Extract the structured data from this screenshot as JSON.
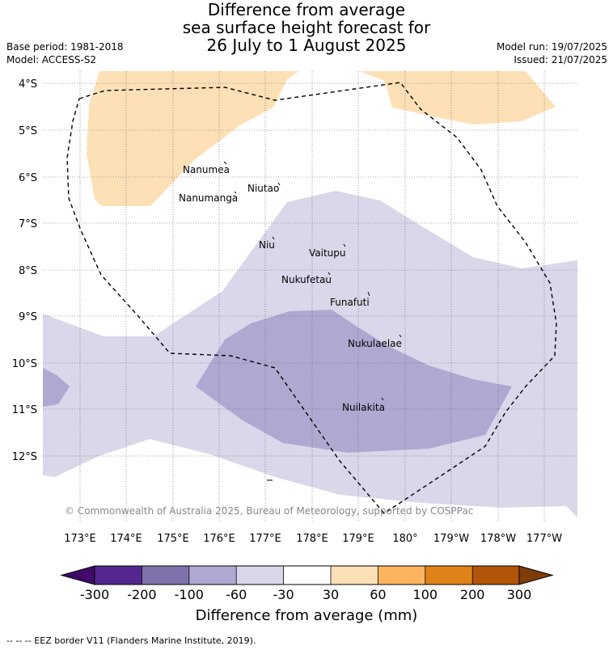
{
  "header": {
    "title_line1": "Difference from average",
    "title_line2": "sea surface height forecast for",
    "title_line3": "26 July to 1 August 2025",
    "base_period": "Base period: 1981-2018",
    "model": "Model: ACCESS-S2",
    "model_run": "Model run: 19/07/2025",
    "issued": "Issued: 21/07/2025"
  },
  "map": {
    "lat_labels": [
      "4°S",
      "5°S",
      "6°S",
      "7°S",
      "8°S",
      "9°S",
      "10°S",
      "11°S",
      "12°S"
    ],
    "lon_labels": [
      "173°E",
      "174°E",
      "175°E",
      "176°E",
      "177°E",
      "178°E",
      "179°E",
      "180°",
      "179°W",
      "178°W",
      "177°W"
    ],
    "places": [
      {
        "name": "Nanumea"
      },
      {
        "name": "Nanumanga"
      },
      {
        "name": "Niutao"
      },
      {
        "name": "Niu"
      },
      {
        "name": "Vaitupu"
      },
      {
        "name": "Nukufetau"
      },
      {
        "name": "Funafuti"
      },
      {
        "name": "Nukulaelae"
      },
      {
        "name": "Nuilakita"
      }
    ],
    "copyright": "© Commonwealth of Australia 2025, Bureau of Meteorology, supported by COSPPac"
  },
  "colorbar": {
    "ticks": [
      "-300",
      "-200",
      "-100",
      "-60",
      "-30",
      "30",
      "60",
      "100",
      "200",
      "300"
    ],
    "colors": [
      "#3f0a6b",
      "#54278f",
      "#7f72ab",
      "#afa9d1",
      "#d8d8ea",
      "#ffffff",
      "#fde0b6",
      "#fdb45f",
      "#e0821a",
      "#b25508",
      "#7f3b08"
    ],
    "label": "Difference from average (mm)"
  },
  "legend": {
    "eez_text": "--  --  -- EEZ border V11 (Flanders Marine Institute, 2019)."
  }
}
